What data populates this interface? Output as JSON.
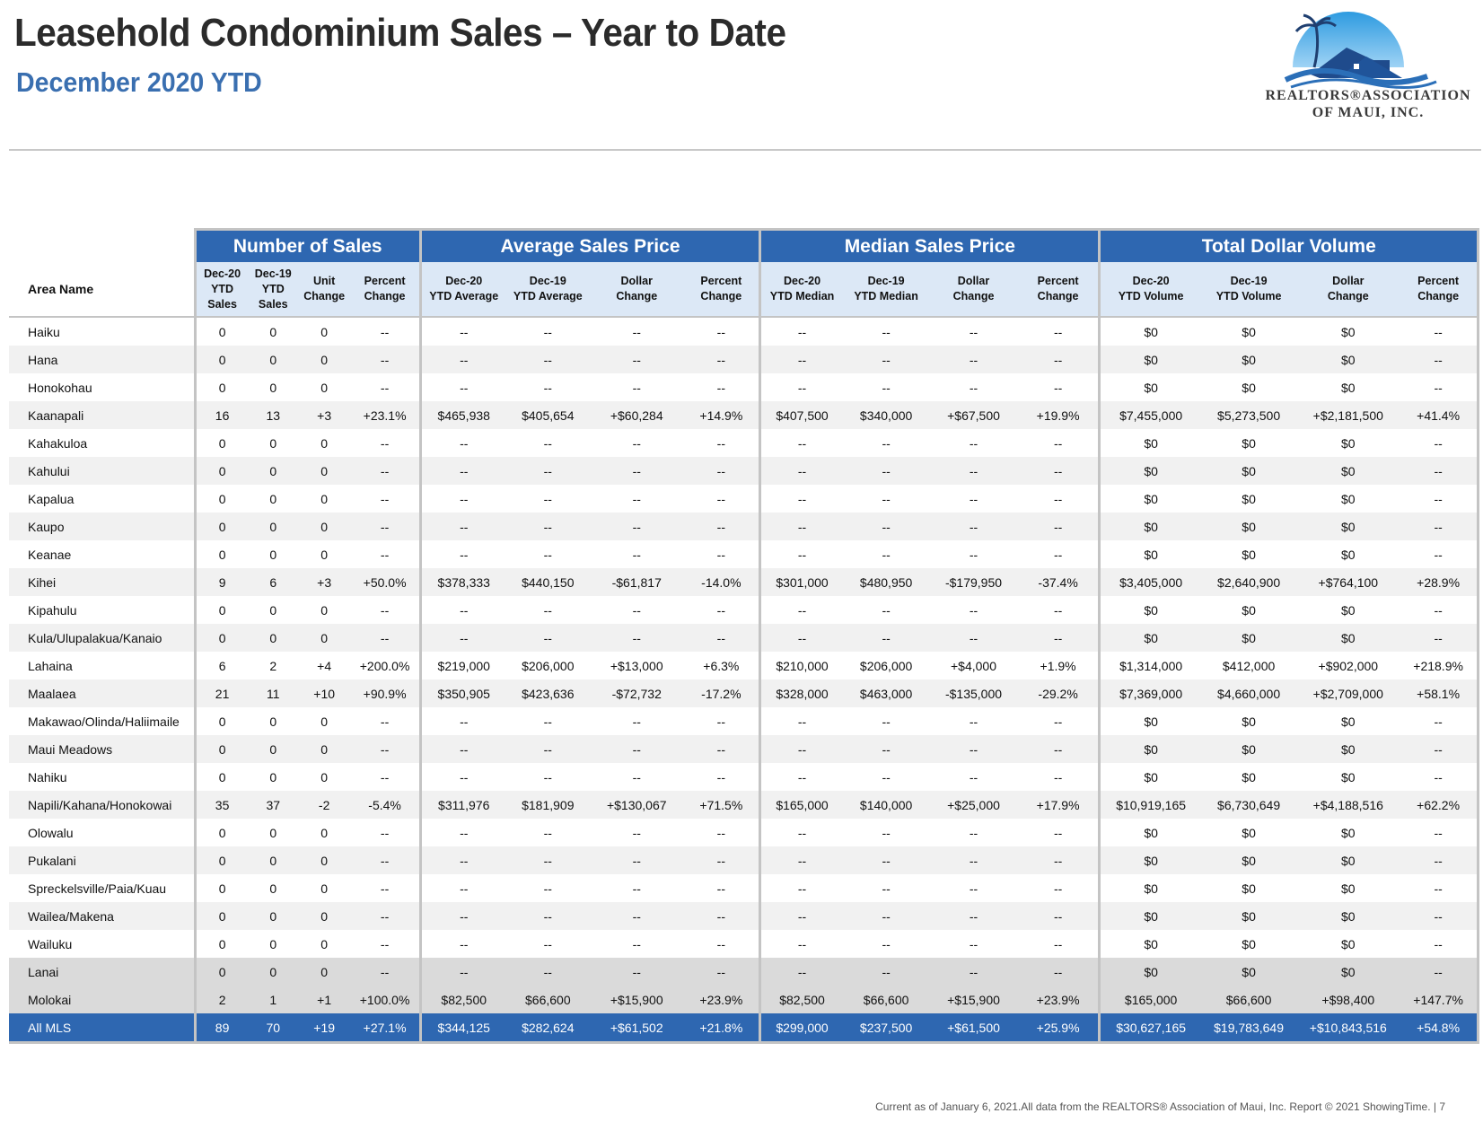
{
  "header": {
    "title": "Leasehold Condominium Sales – Year to Date",
    "subtitle": "December 2020 YTD"
  },
  "logo": {
    "line1": "Realtors®Association",
    "line2": "of Maui, Inc.",
    "colors": {
      "sky": "#2e9be0",
      "roof": "#1f4b8c",
      "wave": "#2b6fb8"
    }
  },
  "table": {
    "groups": [
      "Number of Sales",
      "Average Sales Price",
      "Median Sales Price",
      "Total Dollar Volume"
    ],
    "area_header": "Area Name",
    "sub_headers": [
      [
        "Dec-20",
        "YTD",
        "Sales"
      ],
      [
        "Dec-19",
        "YTD",
        "Sales"
      ],
      [
        "Unit",
        "Change"
      ],
      [
        "Percent",
        "Change"
      ],
      [
        "Dec-20",
        "YTD Average"
      ],
      [
        "Dec-19",
        "YTD Average"
      ],
      [
        "Dollar",
        "Change"
      ],
      [
        "Percent",
        "Change"
      ],
      [
        "Dec-20",
        "YTD Median"
      ],
      [
        "Dec-19",
        "YTD Median"
      ],
      [
        "Dollar",
        "Change"
      ],
      [
        "Percent",
        "Change"
      ],
      [
        "Dec-20",
        "YTD Volume"
      ],
      [
        "Dec-19",
        "YTD Volume"
      ],
      [
        "Dollar",
        "Change"
      ],
      [
        "Percent",
        "Change"
      ]
    ],
    "rows": [
      [
        "Haiku",
        "0",
        "0",
        "0",
        "--",
        "--",
        "--",
        "--",
        "--",
        "--",
        "--",
        "--",
        "--",
        "$0",
        "$0",
        "$0",
        "--"
      ],
      [
        "Hana",
        "0",
        "0",
        "0",
        "--",
        "--",
        "--",
        "--",
        "--",
        "--",
        "--",
        "--",
        "--",
        "$0",
        "$0",
        "$0",
        "--"
      ],
      [
        "Honokohau",
        "0",
        "0",
        "0",
        "--",
        "--",
        "--",
        "--",
        "--",
        "--",
        "--",
        "--",
        "--",
        "$0",
        "$0",
        "$0",
        "--"
      ],
      [
        "Kaanapali",
        "16",
        "13",
        "+3",
        "+23.1%",
        "$465,938",
        "$405,654",
        "+$60,284",
        "+14.9%",
        "$407,500",
        "$340,000",
        "+$67,500",
        "+19.9%",
        "$7,455,000",
        "$5,273,500",
        "+$2,181,500",
        "+41.4%"
      ],
      [
        "Kahakuloa",
        "0",
        "0",
        "0",
        "--",
        "--",
        "--",
        "--",
        "--",
        "--",
        "--",
        "--",
        "--",
        "$0",
        "$0",
        "$0",
        "--"
      ],
      [
        "Kahului",
        "0",
        "0",
        "0",
        "--",
        "--",
        "--",
        "--",
        "--",
        "--",
        "--",
        "--",
        "--",
        "$0",
        "$0",
        "$0",
        "--"
      ],
      [
        "Kapalua",
        "0",
        "0",
        "0",
        "--",
        "--",
        "--",
        "--",
        "--",
        "--",
        "--",
        "--",
        "--",
        "$0",
        "$0",
        "$0",
        "--"
      ],
      [
        "Kaupo",
        "0",
        "0",
        "0",
        "--",
        "--",
        "--",
        "--",
        "--",
        "--",
        "--",
        "--",
        "--",
        "$0",
        "$0",
        "$0",
        "--"
      ],
      [
        "Keanae",
        "0",
        "0",
        "0",
        "--",
        "--",
        "--",
        "--",
        "--",
        "--",
        "--",
        "--",
        "--",
        "$0",
        "$0",
        "$0",
        "--"
      ],
      [
        "Kihei",
        "9",
        "6",
        "+3",
        "+50.0%",
        "$378,333",
        "$440,150",
        "-$61,817",
        "-14.0%",
        "$301,000",
        "$480,950",
        "-$179,950",
        "-37.4%",
        "$3,405,000",
        "$2,640,900",
        "+$764,100",
        "+28.9%"
      ],
      [
        "Kipahulu",
        "0",
        "0",
        "0",
        "--",
        "--",
        "--",
        "--",
        "--",
        "--",
        "--",
        "--",
        "--",
        "$0",
        "$0",
        "$0",
        "--"
      ],
      [
        "Kula/Ulupalakua/Kanaio",
        "0",
        "0",
        "0",
        "--",
        "--",
        "--",
        "--",
        "--",
        "--",
        "--",
        "--",
        "--",
        "$0",
        "$0",
        "$0",
        "--"
      ],
      [
        "Lahaina",
        "6",
        "2",
        "+4",
        "+200.0%",
        "$219,000",
        "$206,000",
        "+$13,000",
        "+6.3%",
        "$210,000",
        "$206,000",
        "+$4,000",
        "+1.9%",
        "$1,314,000",
        "$412,000",
        "+$902,000",
        "+218.9%"
      ],
      [
        "Maalaea",
        "21",
        "11",
        "+10",
        "+90.9%",
        "$350,905",
        "$423,636",
        "-$72,732",
        "-17.2%",
        "$328,000",
        "$463,000",
        "-$135,000",
        "-29.2%",
        "$7,369,000",
        "$4,660,000",
        "+$2,709,000",
        "+58.1%"
      ],
      [
        "Makawao/Olinda/Haliimaile",
        "0",
        "0",
        "0",
        "--",
        "--",
        "--",
        "--",
        "--",
        "--",
        "--",
        "--",
        "--",
        "$0",
        "$0",
        "$0",
        "--"
      ],
      [
        "Maui Meadows",
        "0",
        "0",
        "0",
        "--",
        "--",
        "--",
        "--",
        "--",
        "--",
        "--",
        "--",
        "--",
        "$0",
        "$0",
        "$0",
        "--"
      ],
      [
        "Nahiku",
        "0",
        "0",
        "0",
        "--",
        "--",
        "--",
        "--",
        "--",
        "--",
        "--",
        "--",
        "--",
        "$0",
        "$0",
        "$0",
        "--"
      ],
      [
        "Napili/Kahana/Honokowai",
        "35",
        "37",
        "-2",
        "-5.4%",
        "$311,976",
        "$181,909",
        "+$130,067",
        "+71.5%",
        "$165,000",
        "$140,000",
        "+$25,000",
        "+17.9%",
        "$10,919,165",
        "$6,730,649",
        "+$4,188,516",
        "+62.2%"
      ],
      [
        "Olowalu",
        "0",
        "0",
        "0",
        "--",
        "--",
        "--",
        "--",
        "--",
        "--",
        "--",
        "--",
        "--",
        "$0",
        "$0",
        "$0",
        "--"
      ],
      [
        "Pukalani",
        "0",
        "0",
        "0",
        "--",
        "--",
        "--",
        "--",
        "--",
        "--",
        "--",
        "--",
        "--",
        "$0",
        "$0",
        "$0",
        "--"
      ],
      [
        "Spreckelsville/Paia/Kuau",
        "0",
        "0",
        "0",
        "--",
        "--",
        "--",
        "--",
        "--",
        "--",
        "--",
        "--",
        "--",
        "$0",
        "$0",
        "$0",
        "--"
      ],
      [
        "Wailea/Makena",
        "0",
        "0",
        "0",
        "--",
        "--",
        "--",
        "--",
        "--",
        "--",
        "--",
        "--",
        "--",
        "$0",
        "$0",
        "$0",
        "--"
      ],
      [
        "Wailuku",
        "0",
        "0",
        "0",
        "--",
        "--",
        "--",
        "--",
        "--",
        "--",
        "--",
        "--",
        "--",
        "$0",
        "$0",
        "$0",
        "--"
      ]
    ],
    "island_rows": [
      [
        "Lanai",
        "0",
        "0",
        "0",
        "--",
        "--",
        "--",
        "--",
        "--",
        "--",
        "--",
        "--",
        "--",
        "$0",
        "$0",
        "$0",
        "--"
      ],
      [
        "Molokai",
        "2",
        "1",
        "+1",
        "+100.0%",
        "$82,500",
        "$66,600",
        "+$15,900",
        "+23.9%",
        "$82,500",
        "$66,600",
        "+$15,900",
        "+23.9%",
        "$165,000",
        "$66,600",
        "+$98,400",
        "+147.7%"
      ]
    ],
    "total_row": [
      "All MLS",
      "89",
      "70",
      "+19",
      "+27.1%",
      "$344,125",
      "$282,624",
      "+$61,502",
      "+21.8%",
      "$299,000",
      "$237,500",
      "+$61,500",
      "+25.9%",
      "$30,627,165",
      "$19,783,649",
      "+$10,843,516",
      "+54.8%"
    ],
    "colors": {
      "group_header": "#2e67b1",
      "sub_header": "#dce8f6",
      "stripe": "#f1f1f1",
      "island": "#dadada"
    }
  },
  "footer": {
    "text": "Current as of January 6, 2021.All data from the REALTORS® Association of Maui, Inc. Report © 2021 ShowingTime.  |  7"
  }
}
